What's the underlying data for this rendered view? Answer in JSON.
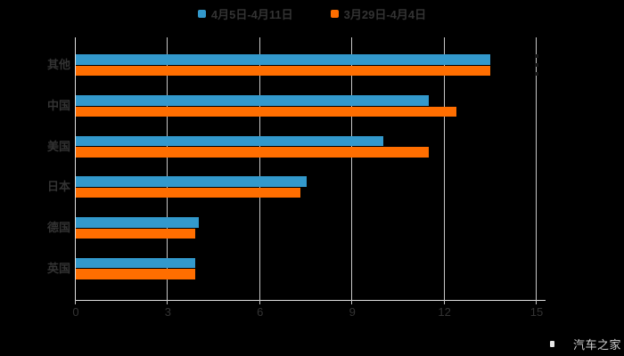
{
  "chart_data": {
    "type": "bar",
    "orientation": "horizontal",
    "title": "",
    "categories": [
      "其他",
      "中国",
      "美国",
      "日本",
      "德国",
      "英国"
    ],
    "series": [
      {
        "name": "4月5日-4月11日",
        "color": "#3399cc",
        "values": [
          13.5,
          11.5,
          10.0,
          7.5,
          4.0,
          3.9
        ]
      },
      {
        "name": "3月29日-4月4日",
        "color": "#ff6e00",
        "values": [
          13.5,
          12.4,
          11.5,
          7.3,
          3.9,
          3.9
        ]
      }
    ],
    "xlim": [
      0,
      15
    ],
    "x_ticks": [
      0,
      3,
      6,
      9,
      12,
      15
    ],
    "grid": true,
    "legend_position": "top",
    "background": "#000000",
    "axis_color": "#e0e0e0",
    "grid_color": "#c8c8c8",
    "text_color": "#333333"
  },
  "watermark": {
    "label": "汽车之家"
  }
}
